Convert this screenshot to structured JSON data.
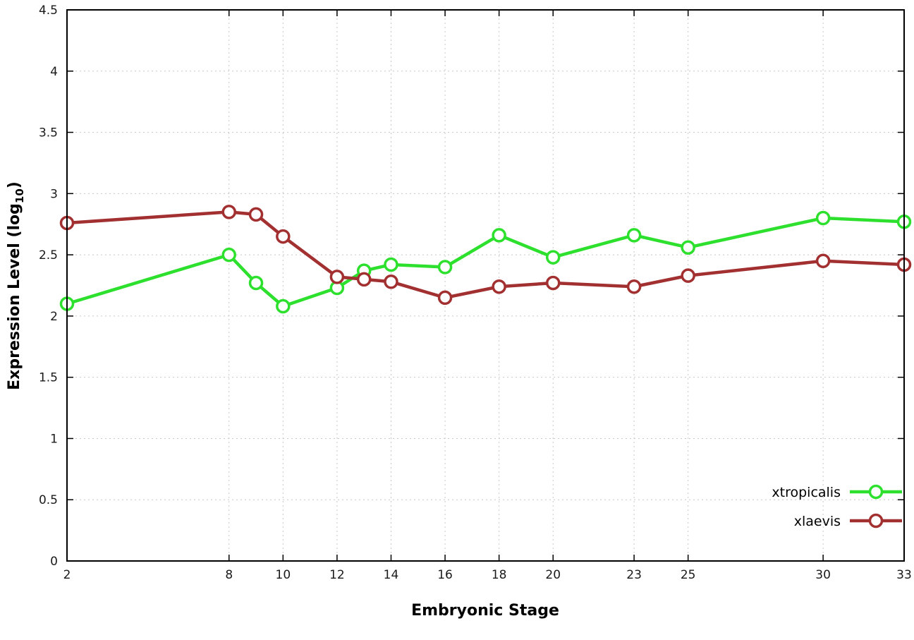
{
  "chart_data": {
    "type": "line",
    "title": "",
    "xlabel": "Embryonic Stage",
    "ylabel": {
      "prefix": "Expression Level (log",
      "sub": "10",
      "suffix": ")"
    },
    "xlim": [
      2,
      33
    ],
    "ylim": [
      0,
      4.5
    ],
    "xticks": [
      2,
      8,
      10,
      12,
      14,
      16,
      18,
      20,
      23,
      25,
      30,
      33
    ],
    "yticks": [
      0,
      0.5,
      1,
      1.5,
      2,
      2.5,
      3,
      3.5,
      4,
      4.5
    ],
    "grid": true,
    "legend_position": "bottom-right",
    "x": [
      2,
      8,
      9,
      10,
      12,
      13,
      14,
      16,
      18,
      20,
      23,
      25,
      30,
      33
    ],
    "series": [
      {
        "name": "xtropicalis",
        "color": "#2ee02e",
        "values": [
          2.1,
          2.5,
          2.27,
          2.08,
          2.23,
          2.37,
          2.42,
          2.4,
          2.66,
          2.48,
          2.66,
          2.56,
          2.8,
          2.77
        ]
      },
      {
        "name": "xlaevis",
        "color": "#a23030",
        "values": [
          2.76,
          2.85,
          2.83,
          2.65,
          2.32,
          2.3,
          2.28,
          2.15,
          2.24,
          2.27,
          2.24,
          2.33,
          2.45,
          2.42
        ]
      }
    ],
    "marker": "open-circle",
    "styling": {
      "grid_color": "#c8c8c8",
      "border_color": "#000000",
      "tick_label_color": "#1a1a1a",
      "axis_label_color": "#000000",
      "background": "#ffffff"
    }
  }
}
